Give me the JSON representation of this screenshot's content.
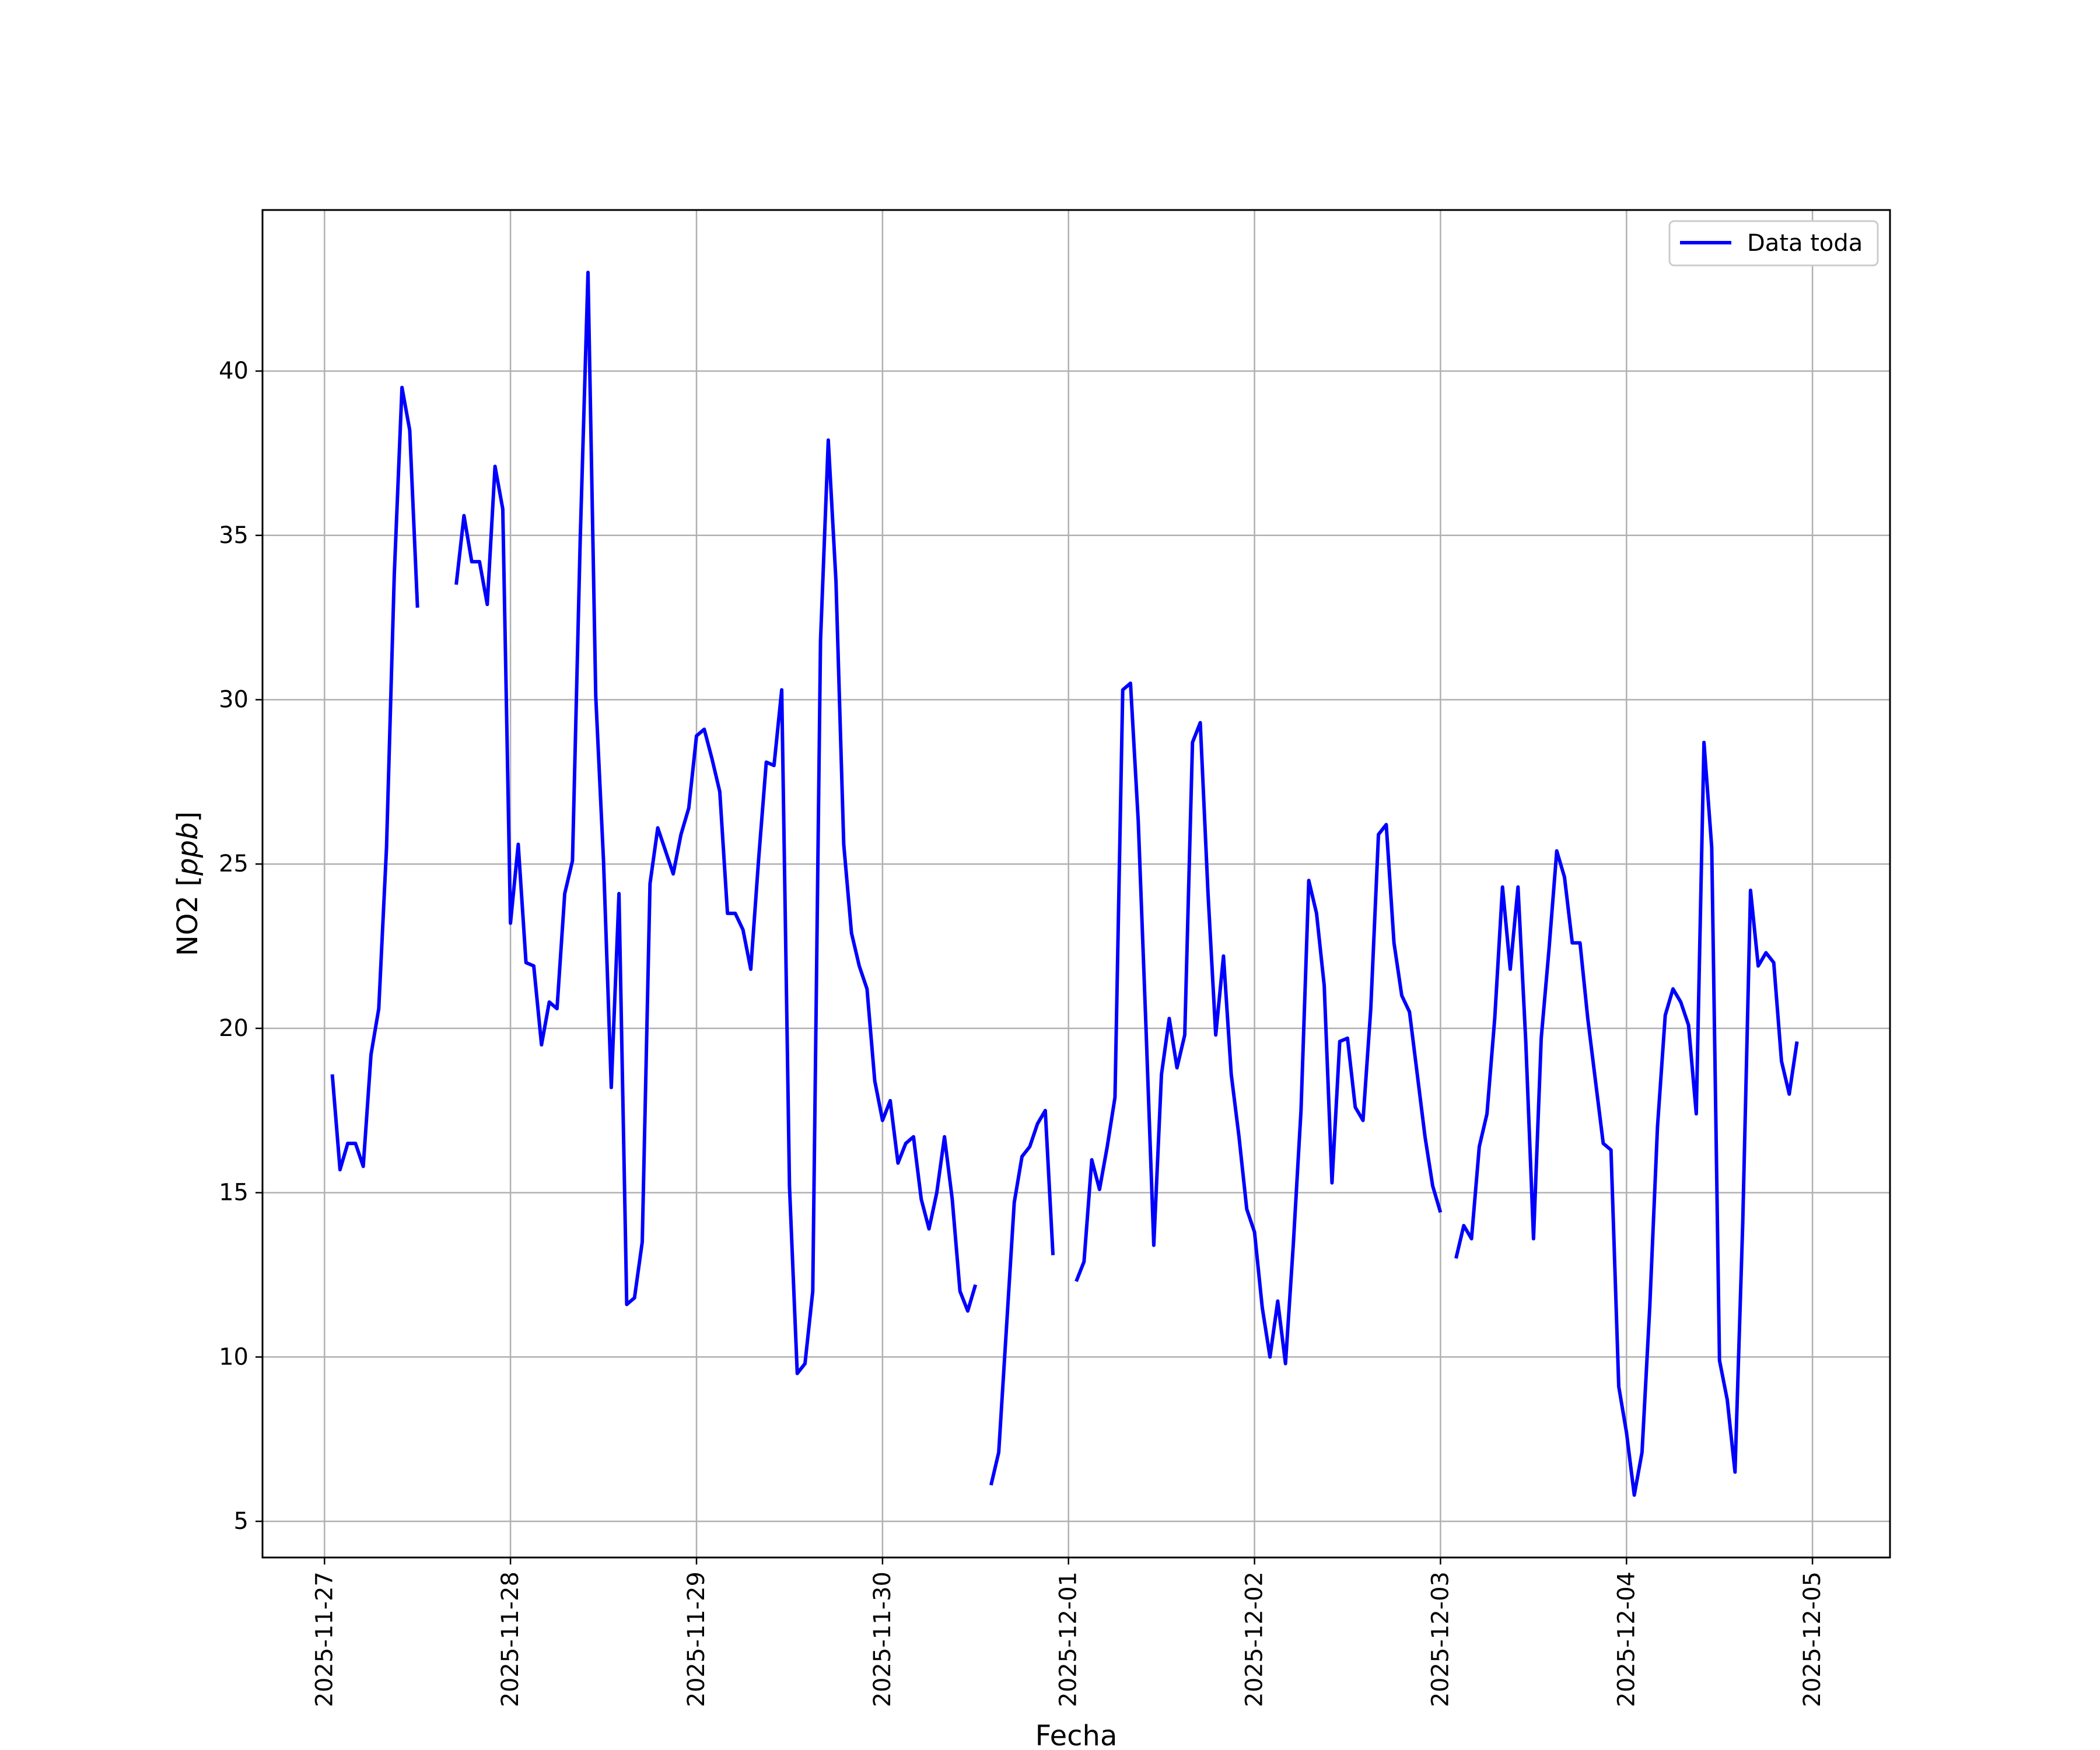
{
  "chart_data": {
    "type": "line",
    "title": "",
    "xlabel": "Fecha",
    "ylabel_text": "NO2 [",
    "ylabel_unit": "ppb",
    "ylabel_close": "]",
    "xlim": [
      "2025-11-26 16:00",
      "2025-12-05 10:00"
    ],
    "ylim": [
      3.9,
      44.9
    ],
    "grid": true,
    "legend": {
      "position": "top-right"
    },
    "x_ticks": [
      "2025-11-27",
      "2025-11-28",
      "2025-11-29",
      "2025-11-30",
      "2025-12-01",
      "2025-12-02",
      "2025-12-03",
      "2025-12-04",
      "2025-12-05"
    ],
    "y_ticks": [
      5,
      10,
      15,
      20,
      25,
      30,
      35,
      40
    ],
    "series": [
      {
        "name": "Data toda",
        "color": "#0000ff",
        "segments": [
          [
            [
              "2025-11-27 01:00",
              18.6
            ],
            [
              "2025-11-27 02:00",
              15.7
            ],
            [
              "2025-11-27 03:00",
              16.5
            ],
            [
              "2025-11-27 04:00",
              16.5
            ],
            [
              "2025-11-27 05:00",
              15.8
            ],
            [
              "2025-11-27 06:00",
              19.2
            ],
            [
              "2025-11-27 07:00",
              20.6
            ],
            [
              "2025-11-27 08:00",
              25.5
            ],
            [
              "2025-11-27 09:00",
              33.8
            ],
            [
              "2025-11-27 10:00",
              39.5
            ],
            [
              "2025-11-27 11:00",
              38.2
            ],
            [
              "2025-11-27 12:00",
              32.8
            ]
          ],
          [
            [
              "2025-11-27 17:00",
              33.5
            ],
            [
              "2025-11-27 18:00",
              35.6
            ],
            [
              "2025-11-27 19:00",
              34.2
            ],
            [
              "2025-11-27 20:00",
              34.2
            ],
            [
              "2025-11-27 21:00",
              32.9
            ],
            [
              "2025-11-27 22:00",
              37.1
            ],
            [
              "2025-11-27 23:00",
              35.8
            ],
            [
              "2025-11-28 00:00",
              23.2
            ],
            [
              "2025-11-28 01:00",
              25.6
            ],
            [
              "2025-11-28 02:00",
              22.0
            ],
            [
              "2025-11-28 03:00",
              21.9
            ],
            [
              "2025-11-28 04:00",
              19.5
            ],
            [
              "2025-11-28 05:00",
              20.8
            ],
            [
              "2025-11-28 06:00",
              20.6
            ],
            [
              "2025-11-28 07:00",
              24.1
            ],
            [
              "2025-11-28 08:00",
              25.1
            ],
            [
              "2025-11-28 09:00",
              34.9
            ],
            [
              "2025-11-28 10:00",
              43.0
            ],
            [
              "2025-11-28 11:00",
              30.1
            ],
            [
              "2025-11-28 12:00",
              25.1
            ],
            [
              "2025-11-28 13:00",
              18.2
            ],
            [
              "2025-11-28 14:00",
              24.1
            ],
            [
              "2025-11-28 15:00",
              11.6
            ],
            [
              "2025-11-28 16:00",
              11.8
            ],
            [
              "2025-11-28 17:00",
              13.5
            ],
            [
              "2025-11-28 18:00",
              24.4
            ],
            [
              "2025-11-28 19:00",
              26.1
            ],
            [
              "2025-11-28 20:00",
              25.4
            ],
            [
              "2025-11-28 21:00",
              24.7
            ],
            [
              "2025-11-28 22:00",
              25.9
            ],
            [
              "2025-11-28 23:00",
              26.7
            ],
            [
              "2025-11-29 00:00",
              28.9
            ],
            [
              "2025-11-29 01:00",
              29.1
            ],
            [
              "2025-11-29 02:00",
              28.2
            ],
            [
              "2025-11-29 03:00",
              27.2
            ],
            [
              "2025-11-29 04:00",
              23.5
            ],
            [
              "2025-11-29 05:00",
              23.5
            ],
            [
              "2025-11-29 06:00",
              23.0
            ],
            [
              "2025-11-29 07:00",
              21.8
            ],
            [
              "2025-11-29 08:00",
              25.1
            ],
            [
              "2025-11-29 09:00",
              28.1
            ],
            [
              "2025-11-29 10:00",
              28.0
            ],
            [
              "2025-11-29 11:00",
              30.3
            ],
            [
              "2025-11-29 12:00",
              15.2
            ],
            [
              "2025-11-29 13:00",
              9.5
            ],
            [
              "2025-11-29 14:00",
              9.8
            ],
            [
              "2025-11-29 15:00",
              12.0
            ],
            [
              "2025-11-29 16:00",
              31.8
            ],
            [
              "2025-11-29 17:00",
              37.9
            ],
            [
              "2025-11-29 18:00",
              33.6
            ],
            [
              "2025-11-29 19:00",
              25.6
            ],
            [
              "2025-11-29 20:00",
              22.9
            ],
            [
              "2025-11-29 21:00",
              21.9
            ],
            [
              "2025-11-29 22:00",
              21.2
            ],
            [
              "2025-11-29 23:00",
              18.4
            ],
            [
              "2025-11-30 00:00",
              17.2
            ],
            [
              "2025-11-30 01:00",
              17.8
            ],
            [
              "2025-11-30 02:00",
              15.9
            ],
            [
              "2025-11-30 03:00",
              16.5
            ],
            [
              "2025-11-30 04:00",
              16.7
            ],
            [
              "2025-11-30 05:00",
              14.8
            ],
            [
              "2025-11-30 06:00",
              13.9
            ],
            [
              "2025-11-30 07:00",
              15.0
            ],
            [
              "2025-11-30 08:00",
              16.7
            ],
            [
              "2025-11-30 09:00",
              14.8
            ],
            [
              "2025-11-30 10:00",
              12.0
            ],
            [
              "2025-11-30 11:00",
              11.4
            ],
            [
              "2025-11-30 12:00",
              12.2
            ]
          ],
          [
            [
              "2025-11-30 14:00",
              6.1
            ],
            [
              "2025-11-30 15:00",
              7.1
            ],
            [
              "2025-11-30 16:00",
              10.9
            ],
            [
              "2025-11-30 17:00",
              14.7
            ],
            [
              "2025-11-30 18:00",
              16.1
            ],
            [
              "2025-11-30 19:00",
              16.4
            ],
            [
              "2025-11-30 20:00",
              17.1
            ],
            [
              "2025-11-30 21:00",
              17.5
            ],
            [
              "2025-11-30 22:00",
              13.1
            ]
          ],
          [
            [
              "2025-12-01 01:00",
              12.3
            ],
            [
              "2025-12-01 02:00",
              12.9
            ],
            [
              "2025-12-01 03:00",
              16.0
            ],
            [
              "2025-12-01 04:00",
              15.1
            ],
            [
              "2025-12-01 05:00",
              16.4
            ],
            [
              "2025-12-01 06:00",
              17.9
            ],
            [
              "2025-12-01 07:00",
              30.3
            ],
            [
              "2025-12-01 08:00",
              30.5
            ],
            [
              "2025-12-01 09:00",
              26.3
            ],
            [
              "2025-12-01 10:00",
              20.0
            ],
            [
              "2025-12-01 11:00",
              13.4
            ],
            [
              "2025-12-01 12:00",
              18.6
            ],
            [
              "2025-12-01 13:00",
              20.3
            ],
            [
              "2025-12-01 14:00",
              18.8
            ],
            [
              "2025-12-01 15:00",
              19.8
            ],
            [
              "2025-12-01 16:00",
              28.7
            ],
            [
              "2025-12-01 17:00",
              29.3
            ],
            [
              "2025-12-01 18:00",
              24.1
            ],
            [
              "2025-12-01 19:00",
              19.8
            ],
            [
              "2025-12-01 20:00",
              22.2
            ],
            [
              "2025-12-01 21:00",
              18.6
            ],
            [
              "2025-12-01 22:00",
              16.7
            ],
            [
              "2025-12-01 23:00",
              14.5
            ],
            [
              "2025-12-02 00:00",
              13.8
            ],
            [
              "2025-12-02 01:00",
              11.5
            ],
            [
              "2025-12-02 02:00",
              10.0
            ],
            [
              "2025-12-02 03:00",
              11.7
            ],
            [
              "2025-12-02 04:00",
              9.8
            ],
            [
              "2025-12-02 05:00",
              13.4
            ],
            [
              "2025-12-02 06:00",
              17.5
            ],
            [
              "2025-12-02 07:00",
              24.5
            ],
            [
              "2025-12-02 08:00",
              23.5
            ],
            [
              "2025-12-02 09:00",
              21.3
            ],
            [
              "2025-12-02 10:00",
              15.3
            ],
            [
              "2025-12-02 11:00",
              19.6
            ],
            [
              "2025-12-02 12:00",
              19.7
            ],
            [
              "2025-12-02 13:00",
              17.6
            ],
            [
              "2025-12-02 14:00",
              17.2
            ],
            [
              "2025-12-02 15:00",
              20.6
            ],
            [
              "2025-12-02 16:00",
              25.9
            ],
            [
              "2025-12-02 17:00",
              26.2
            ],
            [
              "2025-12-02 18:00",
              22.6
            ],
            [
              "2025-12-02 19:00",
              21.0
            ],
            [
              "2025-12-02 20:00",
              20.5
            ],
            [
              "2025-12-02 21:00",
              18.6
            ],
            [
              "2025-12-02 22:00",
              16.7
            ],
            [
              "2025-12-02 23:00",
              15.2
            ],
            [
              "2025-12-03 00:00",
              14.4
            ]
          ],
          [
            [
              "2025-12-03 02:00",
              13.0
            ],
            [
              "2025-12-03 03:00",
              14.0
            ],
            [
              "2025-12-03 04:00",
              13.6
            ],
            [
              "2025-12-03 05:00",
              16.4
            ],
            [
              "2025-12-03 06:00",
              17.4
            ],
            [
              "2025-12-03 07:00",
              20.3
            ],
            [
              "2025-12-03 08:00",
              24.3
            ],
            [
              "2025-12-03 09:00",
              21.8
            ],
            [
              "2025-12-03 10:00",
              24.3
            ],
            [
              "2025-12-03 11:00",
              19.6
            ],
            [
              "2025-12-03 12:00",
              13.6
            ],
            [
              "2025-12-03 13:00",
              19.7
            ],
            [
              "2025-12-03 14:00",
              22.4
            ],
            [
              "2025-12-03 15:00",
              25.4
            ],
            [
              "2025-12-03 16:00",
              24.6
            ],
            [
              "2025-12-03 17:00",
              22.6
            ],
            [
              "2025-12-03 18:00",
              22.6
            ],
            [
              "2025-12-03 19:00",
              20.3
            ],
            [
              "2025-12-03 20:00",
              18.4
            ],
            [
              "2025-12-03 21:00",
              16.5
            ],
            [
              "2025-12-03 22:00",
              16.3
            ],
            [
              "2025-12-03 23:00",
              9.1
            ],
            [
              "2025-12-04 00:00",
              7.7
            ],
            [
              "2025-12-04 01:00",
              5.8
            ],
            [
              "2025-12-04 02:00",
              7.1
            ],
            [
              "2025-12-04 03:00",
              11.5
            ],
            [
              "2025-12-04 04:00",
              17.0
            ],
            [
              "2025-12-04 05:00",
              20.4
            ],
            [
              "2025-12-04 06:00",
              21.2
            ],
            [
              "2025-12-04 07:00",
              20.8
            ],
            [
              "2025-12-04 08:00",
              20.1
            ],
            [
              "2025-12-04 09:00",
              17.4
            ],
            [
              "2025-12-04 10:00",
              28.7
            ],
            [
              "2025-12-04 11:00",
              25.5
            ],
            [
              "2025-12-04 12:00",
              9.9
            ],
            [
              "2025-12-04 13:00",
              8.7
            ],
            [
              "2025-12-04 14:00",
              6.5
            ],
            [
              "2025-12-04 15:00",
              14.1
            ],
            [
              "2025-12-04 16:00",
              24.2
            ],
            [
              "2025-12-04 17:00",
              21.9
            ],
            [
              "2025-12-04 18:00",
              22.3
            ],
            [
              "2025-12-04 19:00",
              22.0
            ],
            [
              "2025-12-04 20:00",
              19.0
            ],
            [
              "2025-12-04 21:00",
              18.0
            ],
            [
              "2025-12-04 22:00",
              19.6
            ]
          ]
        ]
      }
    ]
  }
}
